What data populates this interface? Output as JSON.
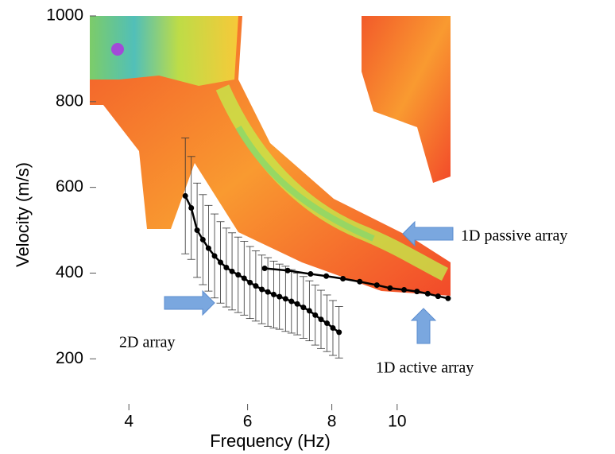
{
  "chart_data": {
    "type": "line",
    "xlabel": "Frequency (Hz)",
    "ylabel": "Velocity (m/s)",
    "xscale": "log",
    "xlim": [
      3.5,
      12
    ],
    "xticks": [
      4,
      6,
      8,
      10
    ],
    "ylim": [
      80,
      1000
    ],
    "yticks": [
      200,
      400,
      600,
      800,
      1000
    ],
    "series": [
      {
        "color": "#000000",
        "x": [
          4.85,
          4.95,
          5.05,
          5.15,
          5.25,
          5.36,
          5.47,
          5.58,
          5.69,
          5.81,
          5.93,
          6.05,
          6.17,
          6.3,
          6.43,
          6.56,
          6.69,
          6.83,
          6.97,
          7.11,
          7.26,
          7.41,
          7.56,
          7.71,
          7.87,
          8.03,
          8.2
        ],
        "values": [
          580,
          552,
          500,
          478,
          458,
          440,
          425,
          413,
          404,
          396,
          388,
          378,
          370,
          362,
          356,
          350,
          345,
          340,
          334,
          328,
          320,
          312,
          302,
          292,
          283,
          272,
          262
        ],
        "errors": [
          135,
          120,
          110,
          105,
          100,
          98,
          95,
          92,
          90,
          88,
          86,
          84,
          82,
          80,
          80,
          78,
          76,
          76,
          74,
          72,
          72,
          70,
          70,
          68,
          66,
          64,
          60
        ]
      },
      {
        "color": "#000000",
        "x": [
          6.36,
          6.88,
          7.44,
          7.85,
          8.31,
          8.8,
          9.33,
          9.76,
          10.24,
          10.7,
          11.1,
          11.5,
          11.9
        ],
        "values": [
          411,
          406,
          398,
          393,
          387,
          380,
          372,
          365,
          361,
          357,
          352,
          346,
          341
        ]
      }
    ],
    "annotations": [
      "2D array",
      "1D passive array",
      "1D active array"
    ]
  }
}
